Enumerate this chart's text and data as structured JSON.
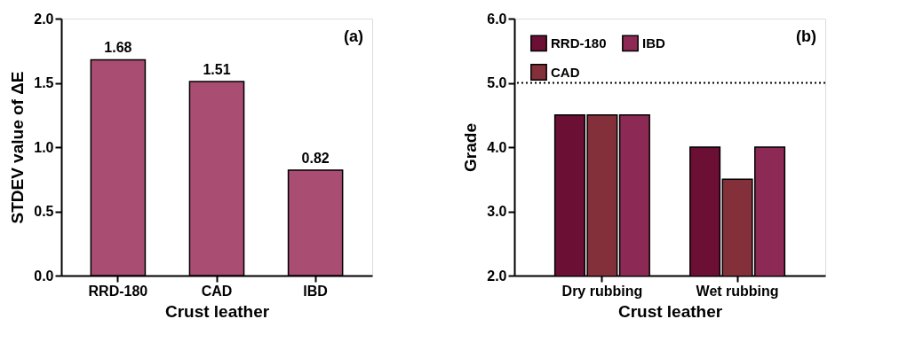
{
  "chart_data": [
    {
      "type": "bar",
      "categories": [
        "RRD-180",
        "CAD",
        "IBD"
      ],
      "values": [
        1.68,
        1.51,
        0.82
      ],
      "color": "#a94d72",
      "data_labels": true,
      "xlabel": "Crust leather",
      "ylabel": "STDEV value of ΔE",
      "ylim": [
        0,
        2
      ],
      "yticks": [
        {
          "value": 0,
          "label": "0.0"
        },
        0.5,
        {
          "value": 1,
          "label": "1.0"
        },
        1.5,
        {
          "value": 2,
          "label": "2.0"
        }
      ],
      "annotations": [
        "(a)"
      ],
      "grid": false,
      "legend": false
    },
    {
      "type": "bar",
      "categories": [
        "Dry rubbing",
        "Wet rubbing"
      ],
      "series": [
        {
          "name": "RRD-180",
          "color": "#6b0f35",
          "values": [
            4.5,
            4.0
          ]
        },
        {
          "name": "CAD",
          "color": "#84303a",
          "values": [
            4.5,
            3.5
          ]
        },
        {
          "name": "IBD",
          "color": "#8c2a55",
          "values": [
            4.5,
            4.0
          ]
        }
      ],
      "xlabel": "Crust leather",
      "ylabel": "Grade",
      "ylim": [
        2,
        6
      ],
      "yticks": [
        {
          "value": 2,
          "label": "2.0"
        },
        {
          "value": 3,
          "label": "3.0"
        },
        {
          "value": 4,
          "label": "4.0"
        },
        {
          "value": 5,
          "label": "5.0"
        },
        {
          "value": 6,
          "label": "6.0"
        }
      ],
      "ref_lines": [
        {
          "axis": "y",
          "value": 5,
          "label": null,
          "line_style": "dotted",
          "color": "#000000"
        }
      ],
      "annotations": [
        "(b)"
      ],
      "grid": false,
      "legend": "top left"
    }
  ]
}
